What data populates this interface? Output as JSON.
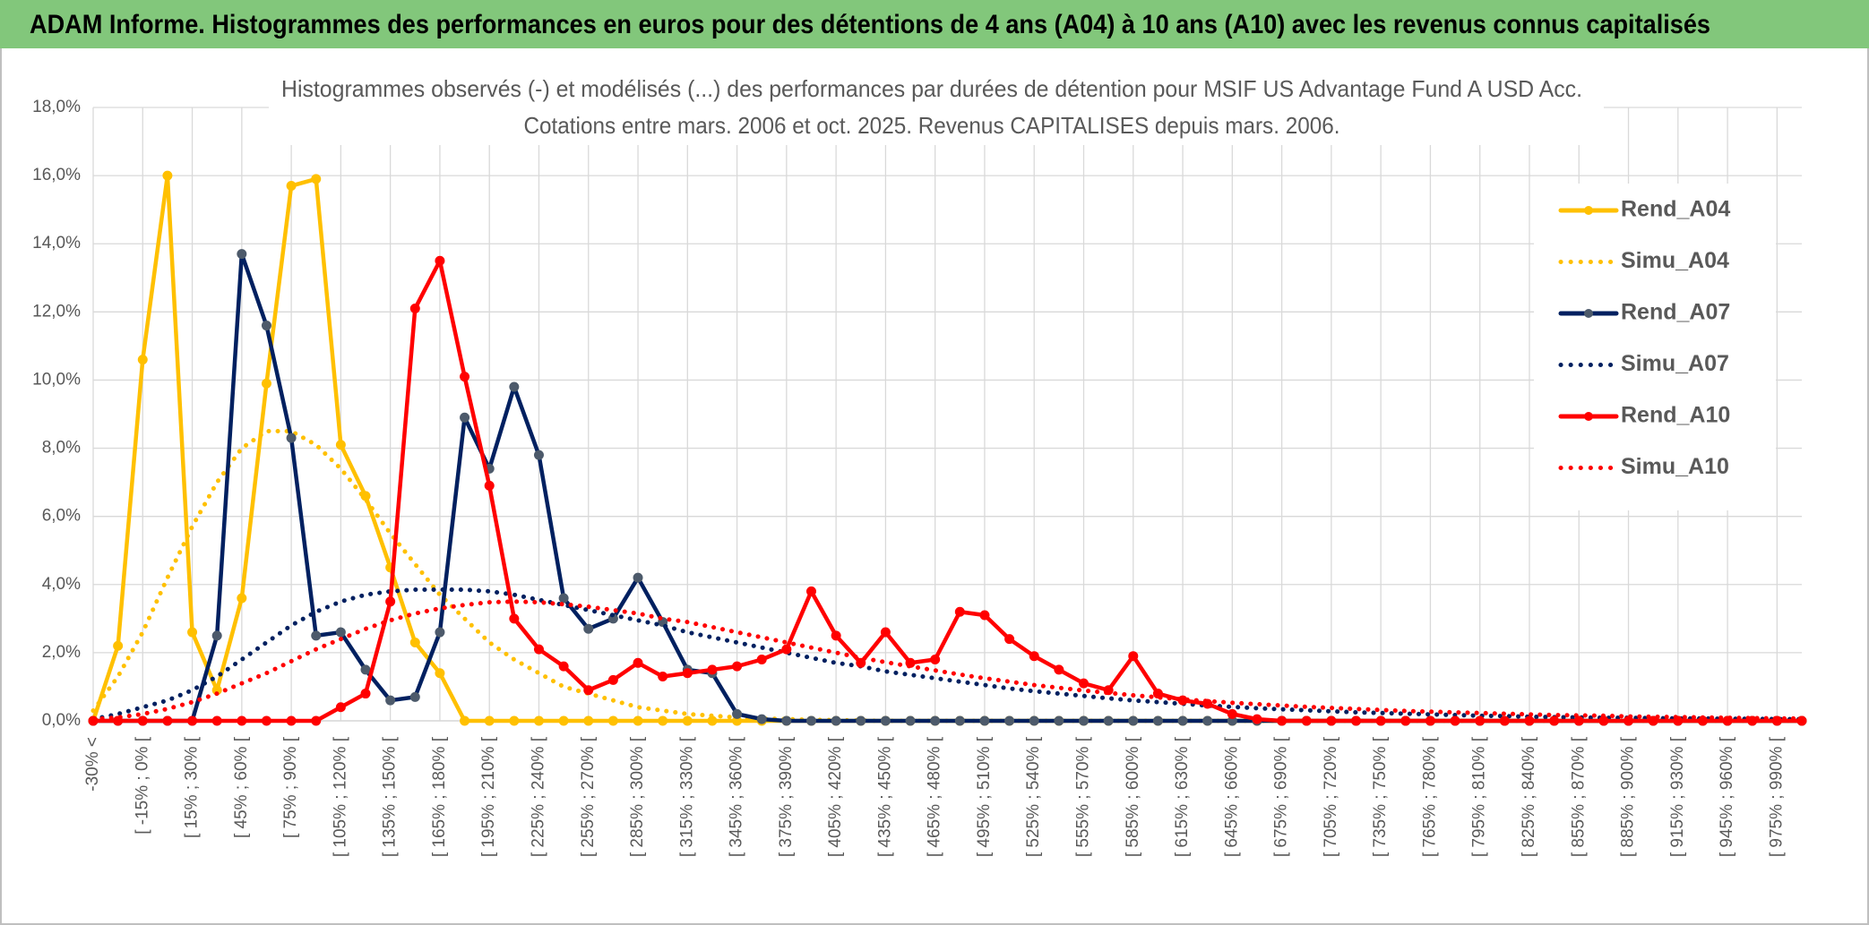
{
  "header": {
    "title": "ADAM Informe. Histogrammes des performances en euros pour des détentions de 4 ans (A04) à 10 ans (A10) avec les revenus connus capitalisés"
  },
  "chart_data": {
    "type": "line",
    "title": "Histogrammes observés (-) et modélisés (...) des performances par durées de détention pour MSIF US Advantage Fund A USD Acc.",
    "subtitle": "Cotations entre mars. 2006 et oct. 2025. Revenus CAPITALISES depuis mars. 2006.",
    "categories": [
      "-30% <",
      null,
      "[ -15% ; 0% [",
      null,
      "[ 15% ; 30% [",
      null,
      "[ 45% ; 60% [",
      null,
      "[ 75% ; 90% [",
      null,
      "[ 105% ; 120% [",
      null,
      "[ 135% ; 150% [",
      null,
      "[ 165% ; 180% [",
      null,
      "[ 195% ; 210% [",
      null,
      "[ 225% ; 240% [",
      null,
      "[ 255% ; 270% [",
      null,
      "[ 285% ; 300% [",
      null,
      "[ 315% ; 330% [",
      null,
      "[ 345% ; 360% [",
      null,
      "[ 375% ; 390% [",
      null,
      "[ 405% ; 420% [",
      null,
      "[ 435% ; 450% [",
      null,
      "[ 465% ; 480% [",
      null,
      "[ 495% ; 510% [",
      null,
      "[ 525% ; 540% [",
      null,
      "[ 555% ; 570% [",
      null,
      "[ 585% ; 600% [",
      null,
      "[ 615% ; 630% [",
      null,
      "[ 645% ; 660% [",
      null,
      "[ 675% ; 690% [",
      null,
      "[ 705% ; 720% [",
      null,
      "[ 735% ; 750% [",
      null,
      "[ 765% ; 780% [",
      null,
      "[ 795% ; 810% [",
      null,
      "[ 825% ; 840% [",
      null,
      "[ 855% ; 870% [",
      null,
      "[ 885% ; 900% [",
      null,
      "[ 915% ; 930% [",
      null,
      "[ 945% ; 960% [",
      null,
      "[ 975% ; 990% [",
      null
    ],
    "series": [
      {
        "name": "Rend_A04",
        "color": "#FFC000",
        "style": "solid",
        "marker": true,
        "values": [
          0,
          2.2,
          10.6,
          16.0,
          2.6,
          0.9,
          3.6,
          9.9,
          15.7,
          15.9,
          8.1,
          6.6,
          4.5,
          2.3,
          1.4,
          0,
          0,
          0,
          0,
          0,
          0,
          0,
          0,
          0,
          0,
          0,
          0,
          0,
          0,
          0,
          0,
          0,
          0,
          0,
          0,
          0,
          0,
          0,
          0,
          0,
          0,
          0,
          0,
          0,
          0,
          0,
          0,
          0,
          0,
          0,
          0,
          0,
          0,
          0,
          0,
          0,
          0,
          0,
          0,
          0,
          0,
          0,
          0,
          0,
          0,
          0,
          0,
          0,
          0,
          0
        ]
      },
      {
        "name": "Simu_A04",
        "color": "#FFC000",
        "style": "dotted",
        "marker": false,
        "values": [
          0.3,
          1.3,
          2.6,
          4.2,
          5.7,
          7.0,
          8.0,
          8.5,
          8.5,
          8.1,
          7.4,
          6.5,
          5.5,
          4.6,
          3.7,
          3.0,
          2.3,
          1.8,
          1.4,
          1.0,
          0.8,
          0.6,
          0.4,
          0.3,
          0.2,
          0.15,
          0.1,
          0.07,
          0.05,
          0.03,
          0.02,
          0.01,
          0,
          0,
          0,
          0,
          0,
          0,
          0,
          0,
          0,
          0,
          0,
          0,
          0,
          0,
          0,
          0,
          0,
          0,
          0,
          0,
          0,
          0,
          0,
          0,
          0,
          0,
          0,
          0,
          0,
          0,
          0,
          0,
          0,
          0,
          0,
          0,
          0,
          0
        ]
      },
      {
        "name": "Rend_A07",
        "color": "#002060",
        "style": "solid",
        "marker": true,
        "marker_color": "#4d5a6b",
        "values": [
          0,
          0,
          0,
          0,
          0,
          2.5,
          13.7,
          11.6,
          8.3,
          2.5,
          2.6,
          1.5,
          0.6,
          0.7,
          2.6,
          8.9,
          7.4,
          9.8,
          7.8,
          3.6,
          2.7,
          3.0,
          4.2,
          2.9,
          1.5,
          1.4,
          0.2,
          0.05,
          0,
          0,
          0,
          0,
          0,
          0,
          0,
          0,
          0,
          0,
          0,
          0,
          0,
          0,
          0,
          0,
          0,
          0,
          0,
          0,
          0,
          0,
          0,
          0,
          0,
          0,
          0,
          0,
          0,
          0,
          0,
          0,
          0,
          0,
          0,
          0,
          0,
          0,
          0,
          0,
          0,
          0
        ]
      },
      {
        "name": "Simu_A07",
        "color": "#002060",
        "style": "dotted",
        "marker": false,
        "values": [
          0.05,
          0.2,
          0.4,
          0.6,
          0.9,
          1.3,
          1.8,
          2.3,
          2.8,
          3.2,
          3.5,
          3.7,
          3.8,
          3.85,
          3.85,
          3.85,
          3.8,
          3.7,
          3.55,
          3.4,
          3.25,
          3.1,
          2.95,
          2.8,
          2.6,
          2.45,
          2.3,
          2.15,
          2.0,
          1.85,
          1.7,
          1.6,
          1.45,
          1.35,
          1.25,
          1.15,
          1.05,
          0.95,
          0.87,
          0.8,
          0.73,
          0.66,
          0.6,
          0.55,
          0.5,
          0.45,
          0.41,
          0.37,
          0.34,
          0.31,
          0.28,
          0.25,
          0.23,
          0.21,
          0.19,
          0.17,
          0.15,
          0.14,
          0.12,
          0.11,
          0.1,
          0.09,
          0.09,
          0.08,
          0.07,
          0.07,
          0.06,
          0.06,
          0.05,
          0.05
        ]
      },
      {
        "name": "Rend_A10",
        "color": "#FF0000",
        "style": "solid",
        "marker": true,
        "values": [
          0,
          0,
          0,
          0,
          0,
          0,
          0,
          0,
          0,
          0,
          0.4,
          0.8,
          3.5,
          12.1,
          13.5,
          10.1,
          6.9,
          3.0,
          2.1,
          1.6,
          0.9,
          1.2,
          1.7,
          1.3,
          1.4,
          1.5,
          1.6,
          1.8,
          2.1,
          3.8,
          2.5,
          1.7,
          2.6,
          1.7,
          1.8,
          3.2,
          3.1,
          2.4,
          1.9,
          1.5,
          1.1,
          0.9,
          1.9,
          0.8,
          0.6,
          0.5,
          0.2,
          0.05,
          0,
          0,
          0,
          0,
          0,
          0,
          0,
          0,
          0,
          0,
          0,
          0,
          0,
          0,
          0,
          0,
          0,
          0,
          0,
          0,
          0,
          0
        ]
      },
      {
        "name": "Simu_A10",
        "color": "#FF0000",
        "style": "dotted",
        "marker": false,
        "values": [
          0.05,
          0.1,
          0.2,
          0.35,
          0.55,
          0.8,
          1.1,
          1.4,
          1.75,
          2.1,
          2.4,
          2.7,
          2.95,
          3.15,
          3.3,
          3.4,
          3.48,
          3.5,
          3.48,
          3.42,
          3.35,
          3.25,
          3.15,
          3.0,
          2.9,
          2.75,
          2.6,
          2.45,
          2.3,
          2.15,
          2.0,
          1.85,
          1.72,
          1.6,
          1.48,
          1.36,
          1.25,
          1.15,
          1.05,
          0.97,
          0.89,
          0.82,
          0.75,
          0.69,
          0.63,
          0.58,
          0.53,
          0.49,
          0.45,
          0.41,
          0.38,
          0.35,
          0.32,
          0.29,
          0.27,
          0.25,
          0.23,
          0.21,
          0.19,
          0.17,
          0.16,
          0.15,
          0.13,
          0.12,
          0.11,
          0.1,
          0.09,
          0.08,
          0.07,
          0.07
        ]
      }
    ],
    "ylim": [
      0,
      18
    ],
    "yticks": [
      {
        "value": 0,
        "label": "0,0%"
      },
      {
        "value": 2,
        "label": "2,0%"
      },
      {
        "value": 4,
        "label": "4,0%"
      },
      {
        "value": 6,
        "label": "6,0%"
      },
      {
        "value": 8,
        "label": "8,0%"
      },
      {
        "value": 10,
        "label": "10,0%"
      },
      {
        "value": 12,
        "label": "12,0%"
      },
      {
        "value": 14,
        "label": "14,0%"
      },
      {
        "value": 16,
        "label": "16,0%"
      },
      {
        "value": 18,
        "label": "18,0%"
      }
    ],
    "grid": true,
    "legend": "upper right"
  }
}
